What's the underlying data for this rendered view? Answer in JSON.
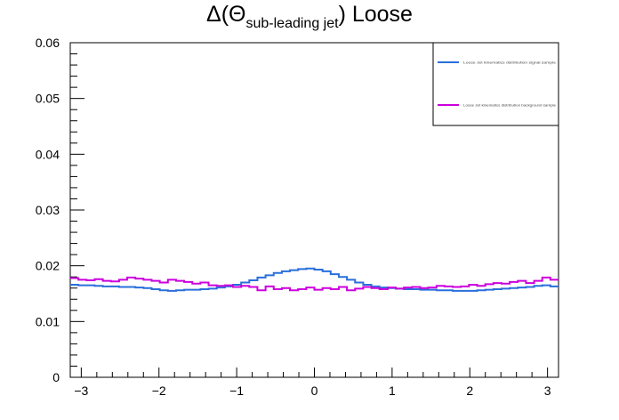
{
  "chart_data": {
    "type": "line",
    "title": {
      "prefix": "Δ(Θ",
      "subscript": "sub-leading jet",
      "suffix": ") Loose"
    },
    "xlabel": "",
    "ylabel": "",
    "xlim": [
      -3.1416,
      3.1416
    ],
    "ylim": [
      0,
      0.06
    ],
    "x_ticks": [
      -3,
      -2,
      -1,
      0,
      1,
      2,
      3
    ],
    "x_tick_labels": [
      "−3",
      "−2",
      "−1",
      "0",
      "1",
      "2",
      "3"
    ],
    "y_ticks": [
      0,
      0.01,
      0.02,
      0.03,
      0.04,
      0.05,
      0.06
    ],
    "y_tick_labels": [
      "0",
      "0.01",
      "0.02",
      "0.03",
      "0.04",
      "0.05",
      "0.06"
    ],
    "grid": false,
    "legend_position": "top-right",
    "nbins": 60,
    "series": [
      {
        "name": "Loose Jet kinematics distribution signal sample",
        "color": "#2a6fdb",
        "values": [
          0.0166,
          0.0165,
          0.0165,
          0.0164,
          0.0163,
          0.0163,
          0.0162,
          0.0162,
          0.0161,
          0.016,
          0.0158,
          0.0156,
          0.0155,
          0.0156,
          0.0157,
          0.0157,
          0.0158,
          0.0159,
          0.0161,
          0.0163,
          0.0166,
          0.017,
          0.0174,
          0.0179,
          0.0183,
          0.0187,
          0.019,
          0.0192,
          0.0194,
          0.0195,
          0.0193,
          0.019,
          0.0185,
          0.018,
          0.0175,
          0.017,
          0.0166,
          0.0163,
          0.0161,
          0.016,
          0.0159,
          0.0158,
          0.0158,
          0.0157,
          0.0157,
          0.0156,
          0.0156,
          0.0155,
          0.0155,
          0.0155,
          0.0156,
          0.0157,
          0.0158,
          0.0159,
          0.016,
          0.0161,
          0.0162,
          0.0164,
          0.0165,
          0.0163
        ]
      },
      {
        "name": "Loose Jet kinematics distribution background sample",
        "color": "#cc00dd",
        "values": [
          0.0178,
          0.0175,
          0.0174,
          0.0176,
          0.0173,
          0.0172,
          0.0175,
          0.0179,
          0.0177,
          0.0175,
          0.0173,
          0.017,
          0.0175,
          0.0173,
          0.0171,
          0.0168,
          0.017,
          0.0165,
          0.0164,
          0.0165,
          0.0162,
          0.0164,
          0.0162,
          0.0156,
          0.0163,
          0.0158,
          0.016,
          0.0156,
          0.0158,
          0.0161,
          0.0157,
          0.016,
          0.0158,
          0.0162,
          0.0156,
          0.0159,
          0.0162,
          0.016,
          0.0158,
          0.0161,
          0.0159,
          0.0161,
          0.0162,
          0.016,
          0.0161,
          0.0164,
          0.0163,
          0.0162,
          0.0163,
          0.0166,
          0.0164,
          0.0167,
          0.0169,
          0.0168,
          0.0171,
          0.0173,
          0.0169,
          0.0173,
          0.0179,
          0.0175
        ]
      }
    ]
  }
}
